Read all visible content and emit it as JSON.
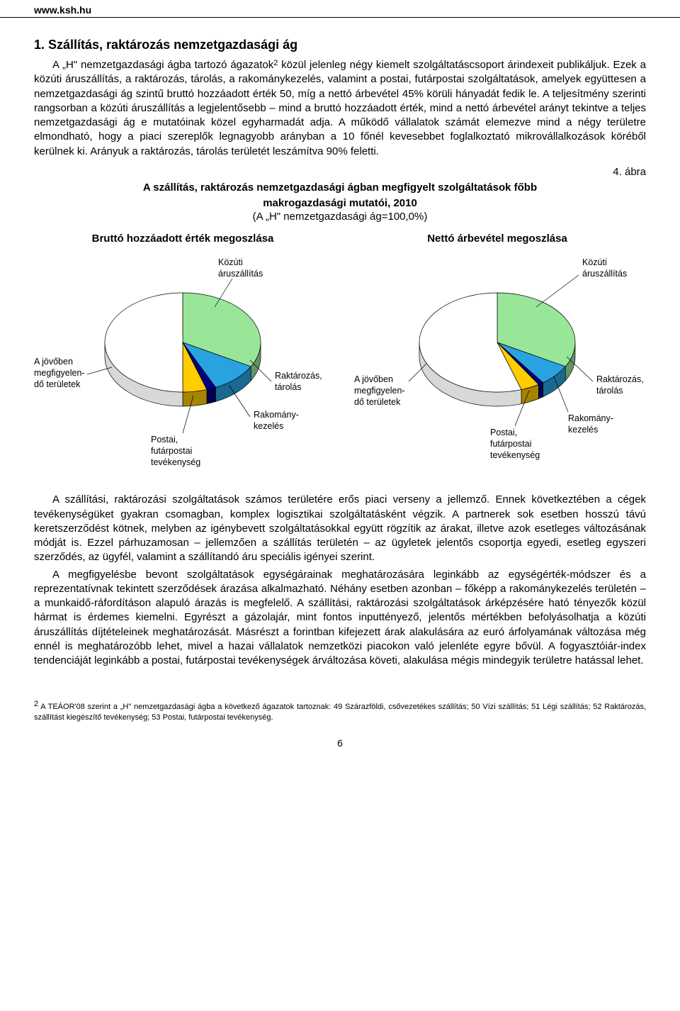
{
  "header": {
    "url": "www.ksh.hu"
  },
  "section": {
    "title": "1. Szállítás, raktározás nemzetgazdasági ág",
    "para1": "A „H\" nemzetgazdasági ágba tartozó ágazatok",
    "sup1": "2",
    "para1b": " közül jelenleg négy kiemelt szolgáltatáscsoport árindexeit publikáljuk. Ezek a közúti áruszállítás, a raktározás, tárolás, a rakománykezelés, valamint a postai, futárpostai szolgáltatások, amelyek együttesen a nemzetgazdasági ág szintű bruttó hozzáadott érték 50, míg a nettó árbevétel 45% körüli hányadát fedik le. A teljesítmény szerinti rangsorban a közúti áruszállítás a legjelentősebb – mind a bruttó hozzáadott érték, mind a nettó árbevétel arányt tekintve a teljes nemzetgazdasági ág e mutatóinak közel egyharmadát adja. A működő vállalatok számát elemezve mind a négy területre elmondható, hogy a piaci szereplők legnagyobb arányban a 10 főnél kevesebbet foglalkoztató mikrovállalkozások köréből kerülnek ki. Arányuk a raktározás, tárolás területét leszámítva 90% feletti."
  },
  "figure": {
    "label": "4. ábra",
    "title_line1": "A szállítás, raktározás nemzetgazdasági ágban megfigyelt szolgáltatások főbb",
    "title_line2": "makrogazdasági mutatói, 2010",
    "sub": "(A „H\" nemzetgazdasági ág=100,0%)"
  },
  "pie_common": {
    "categories": [
      "Közúti áruszállítás",
      "Raktározás, tárolás",
      "Rakománykezelés",
      "Postai, futárpostai tevékenység",
      "A jövőben megfigyelendő területek"
    ],
    "colors": [
      "#99e699",
      "#29a3e0",
      "#000080",
      "#ffcc00",
      "#ffffff"
    ],
    "stroke": "#000000",
    "bg": "#ffffff",
    "labels": {
      "kozuti_l1": "Közúti",
      "kozuti_l2": "áruszállítás",
      "rakt_l1": "Raktározás,",
      "rakt_l2": "tárolás",
      "rakom_l1": "Rakomány-",
      "rakom_l2": "kezelés",
      "posta_l1": "Postai,",
      "posta_l2": "futárpostai",
      "posta_l3": "tevékenység",
      "jovo_l1": "A jövőben",
      "jovo_l2": "megfigyelen-",
      "jovo_l3": "dő területek"
    }
  },
  "pie_left": {
    "title": "Bruttó hozzáadott érték megoszlása",
    "values": [
      33,
      10,
      2,
      5,
      50
    ],
    "angles_deg": [
      [
        -90,
        29
      ],
      [
        29,
        65
      ],
      [
        65,
        72
      ],
      [
        72,
        90
      ],
      [
        90,
        270
      ]
    ]
  },
  "pie_right": {
    "title": "Nettó árbevétel megoszlása",
    "values": [
      33,
      7,
      1,
      4,
      55
    ],
    "angles_deg": [
      [
        -90,
        29
      ],
      [
        29,
        54
      ],
      [
        54,
        58
      ],
      [
        58,
        72
      ],
      [
        72,
        270
      ]
    ]
  },
  "body2": {
    "p1": "A szállítási, raktározási szolgáltatások számos területére erős piaci verseny a jellemző. Ennek következtében a cégek tevékenységüket gyakran csomagban, komplex logisztikai szolgáltatásként végzik. A partnerek sok esetben hosszú távú keretszerződést kötnek, melyben az igénybevett szolgáltatásokkal együtt rögzítik az árakat, illetve azok esetleges változásának módját is. Ezzel párhuzamosan – jellemzően a szállítás területén – az ügyletek jelentős csoportja egyedi, esetleg egyszeri szerződés, az ügyfél, valamint a szállítandó áru speciális igényei szerint.",
    "p2": "A megfigyelésbe bevont szolgáltatások egységárainak meghatározására leginkább az egységérték-módszer és a reprezentatívnak tekintett szerződések árazása alkalmazható. Néhány esetben azonban – főképp a rakománykezelés területén – a munkaidő-ráfordításon alapuló árazás is megfelelő. A szállítási, raktározási szolgáltatások árképzésére ható tényezők közül hármat is érdemes kiemelni. Egyrészt a gázolajár, mint fontos inputtényező, jelentős mértékben befolyásolhatja a közúti áruszállítás díjtételeinek meghatározását. Másrészt a forintban kifejezett árak alakulására az euró árfolyamának változása még ennél is meghatározóbb lehet, mivel a hazai vállalatok nemzetközi piacokon való jelenléte egyre bővül. A fogyasztóiár-index tendenciáját leginkább a postai, futárpostai tevékenységek árváltozása követi, alakulása mégis mindegyik területre hatással lehet."
  },
  "footnote": {
    "sup": "2",
    "text": " A TEÁOR'08 szerint a „H\" nemzetgazdasági ágba a következő ágazatok tartoznak: 49 Szárazföldi, csővezetékes szállítás; 50 Vízi szállítás; 51 Légi szállítás; 52 Raktározás, szállítást kiegészítő tevékenység; 53 Postai, futárpostai tevékenység."
  },
  "pagenum": "6"
}
